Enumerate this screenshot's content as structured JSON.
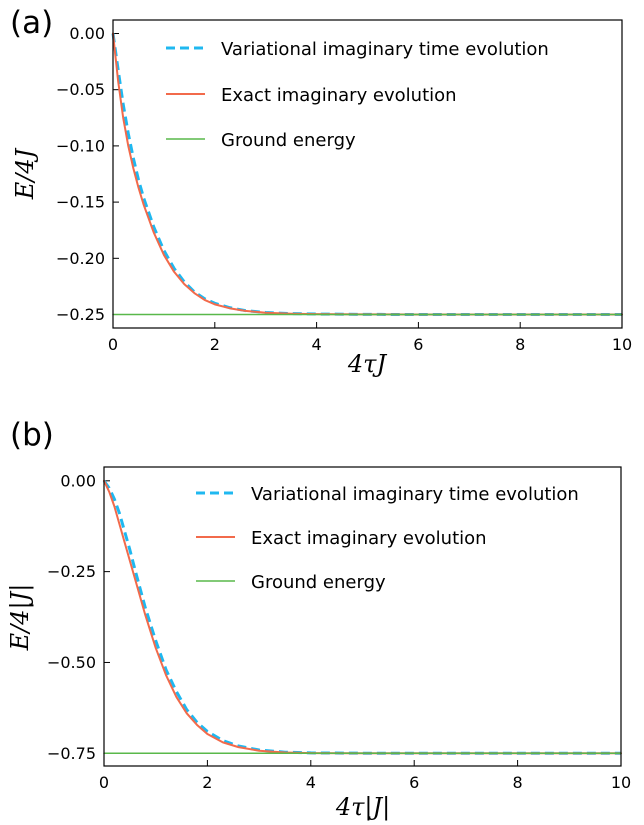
{
  "chart_data": [
    {
      "type": "line",
      "panel_label": "(a)",
      "xlabel": "4τJ",
      "ylabel": "E/4J",
      "xlim": [
        0,
        10
      ],
      "ylim": [
        -0.262,
        0.012
      ],
      "x_ticks": [
        0,
        2,
        4,
        6,
        8,
        10
      ],
      "x_tick_labels": [
        "0",
        "2",
        "4",
        "6",
        "8",
        "10"
      ],
      "y_ticks": [
        0,
        -0.05,
        -0.1,
        -0.15,
        -0.2,
        -0.25
      ],
      "y_tick_labels": [
        "0.00",
        "−0.05",
        "−0.10",
        "−0.15",
        "−0.20",
        "−0.25"
      ],
      "grid": false,
      "legend_position": "top-right",
      "series": [
        {
          "name": "Variational imaginary time evolution",
          "color": "#1fb8f0",
          "style": "dashed",
          "x": [
            0,
            0.1,
            0.2,
            0.3,
            0.4,
            0.5,
            0.6,
            0.8,
            1.0,
            1.2,
            1.4,
            1.6,
            1.8,
            2.0,
            2.3,
            2.6,
            3.0,
            3.5,
            4.0,
            5.0,
            6.0,
            7.0,
            8.0,
            9.0,
            10.0
          ],
          "y": [
            0,
            -0.032,
            -0.063,
            -0.089,
            -0.111,
            -0.13,
            -0.146,
            -0.172,
            -0.193,
            -0.209,
            -0.221,
            -0.23,
            -0.236,
            -0.24,
            -0.244,
            -0.2465,
            -0.2482,
            -0.2492,
            -0.2496,
            -0.2499,
            -0.25,
            -0.25,
            -0.25,
            -0.25,
            -0.25
          ]
        },
        {
          "name": "Exact imaginary evolution",
          "color": "#f26a4b",
          "style": "solid",
          "x": [
            0,
            0.1,
            0.2,
            0.3,
            0.4,
            0.5,
            0.6,
            0.8,
            1.0,
            1.2,
            1.4,
            1.6,
            1.8,
            2.0,
            2.3,
            2.6,
            3.0,
            3.5,
            4.0,
            5.0,
            6.0,
            7.0,
            8.0,
            9.0,
            10.0
          ],
          "y": [
            0,
            -0.042,
            -0.075,
            -0.1,
            -0.12,
            -0.137,
            -0.152,
            -0.177,
            -0.197,
            -0.212,
            -0.223,
            -0.231,
            -0.237,
            -0.241,
            -0.2445,
            -0.2468,
            -0.2484,
            -0.2493,
            -0.2497,
            -0.2499,
            -0.25,
            -0.25,
            -0.25,
            -0.25,
            -0.25
          ]
        },
        {
          "name": "Ground energy",
          "color": "#59b84a",
          "style": "solid",
          "x": [
            0,
            10
          ],
          "y": [
            -0.25,
            -0.25
          ]
        }
      ]
    },
    {
      "type": "line",
      "panel_label": "(b)",
      "xlabel": "4τ|J|",
      "ylabel": "E/4|J|",
      "xlim": [
        0,
        10
      ],
      "ylim": [
        -0.785,
        0.038
      ],
      "x_ticks": [
        0,
        2,
        4,
        6,
        8,
        10
      ],
      "x_tick_labels": [
        "0",
        "2",
        "4",
        "6",
        "8",
        "10"
      ],
      "y_ticks": [
        0,
        -0.25,
        -0.5,
        -0.75
      ],
      "y_tick_labels": [
        "0.00",
        "−0.25",
        "−0.50",
        "−0.75"
      ],
      "grid": false,
      "legend_position": "top-right",
      "series": [
        {
          "name": "Variational imaginary time evolution",
          "color": "#1fb8f0",
          "style": "dashed",
          "x": [
            0,
            0.1,
            0.2,
            0.3,
            0.4,
            0.5,
            0.6,
            0.8,
            1.0,
            1.2,
            1.4,
            1.6,
            1.8,
            2.0,
            2.3,
            2.6,
            3.0,
            3.5,
            4.0,
            5.0,
            6.0,
            7.0,
            8.0,
            9.0,
            10.0
          ],
          "y": [
            0,
            -0.02,
            -0.05,
            -0.09,
            -0.14,
            -0.19,
            -0.245,
            -0.35,
            -0.44,
            -0.52,
            -0.58,
            -0.63,
            -0.665,
            -0.69,
            -0.715,
            -0.73,
            -0.741,
            -0.747,
            -0.749,
            -0.7498,
            -0.75,
            -0.75,
            -0.75,
            -0.75,
            -0.75
          ]
        },
        {
          "name": "Exact imaginary evolution",
          "color": "#f26a4b",
          "style": "solid",
          "x": [
            0,
            0.1,
            0.2,
            0.3,
            0.4,
            0.5,
            0.6,
            0.8,
            1.0,
            1.2,
            1.4,
            1.6,
            1.8,
            2.0,
            2.3,
            2.6,
            3.0,
            3.5,
            4.0,
            5.0,
            6.0,
            7.0,
            8.0,
            9.0,
            10.0
          ],
          "y": [
            0,
            -0.03,
            -0.07,
            -0.12,
            -0.17,
            -0.22,
            -0.27,
            -0.37,
            -0.46,
            -0.535,
            -0.595,
            -0.64,
            -0.672,
            -0.697,
            -0.72,
            -0.733,
            -0.743,
            -0.748,
            -0.7495,
            -0.7499,
            -0.75,
            -0.75,
            -0.75,
            -0.75,
            -0.75
          ]
        },
        {
          "name": "Ground energy",
          "color": "#59b84a",
          "style": "solid",
          "x": [
            0,
            10
          ],
          "y": [
            -0.75,
            -0.75
          ]
        }
      ]
    }
  ]
}
